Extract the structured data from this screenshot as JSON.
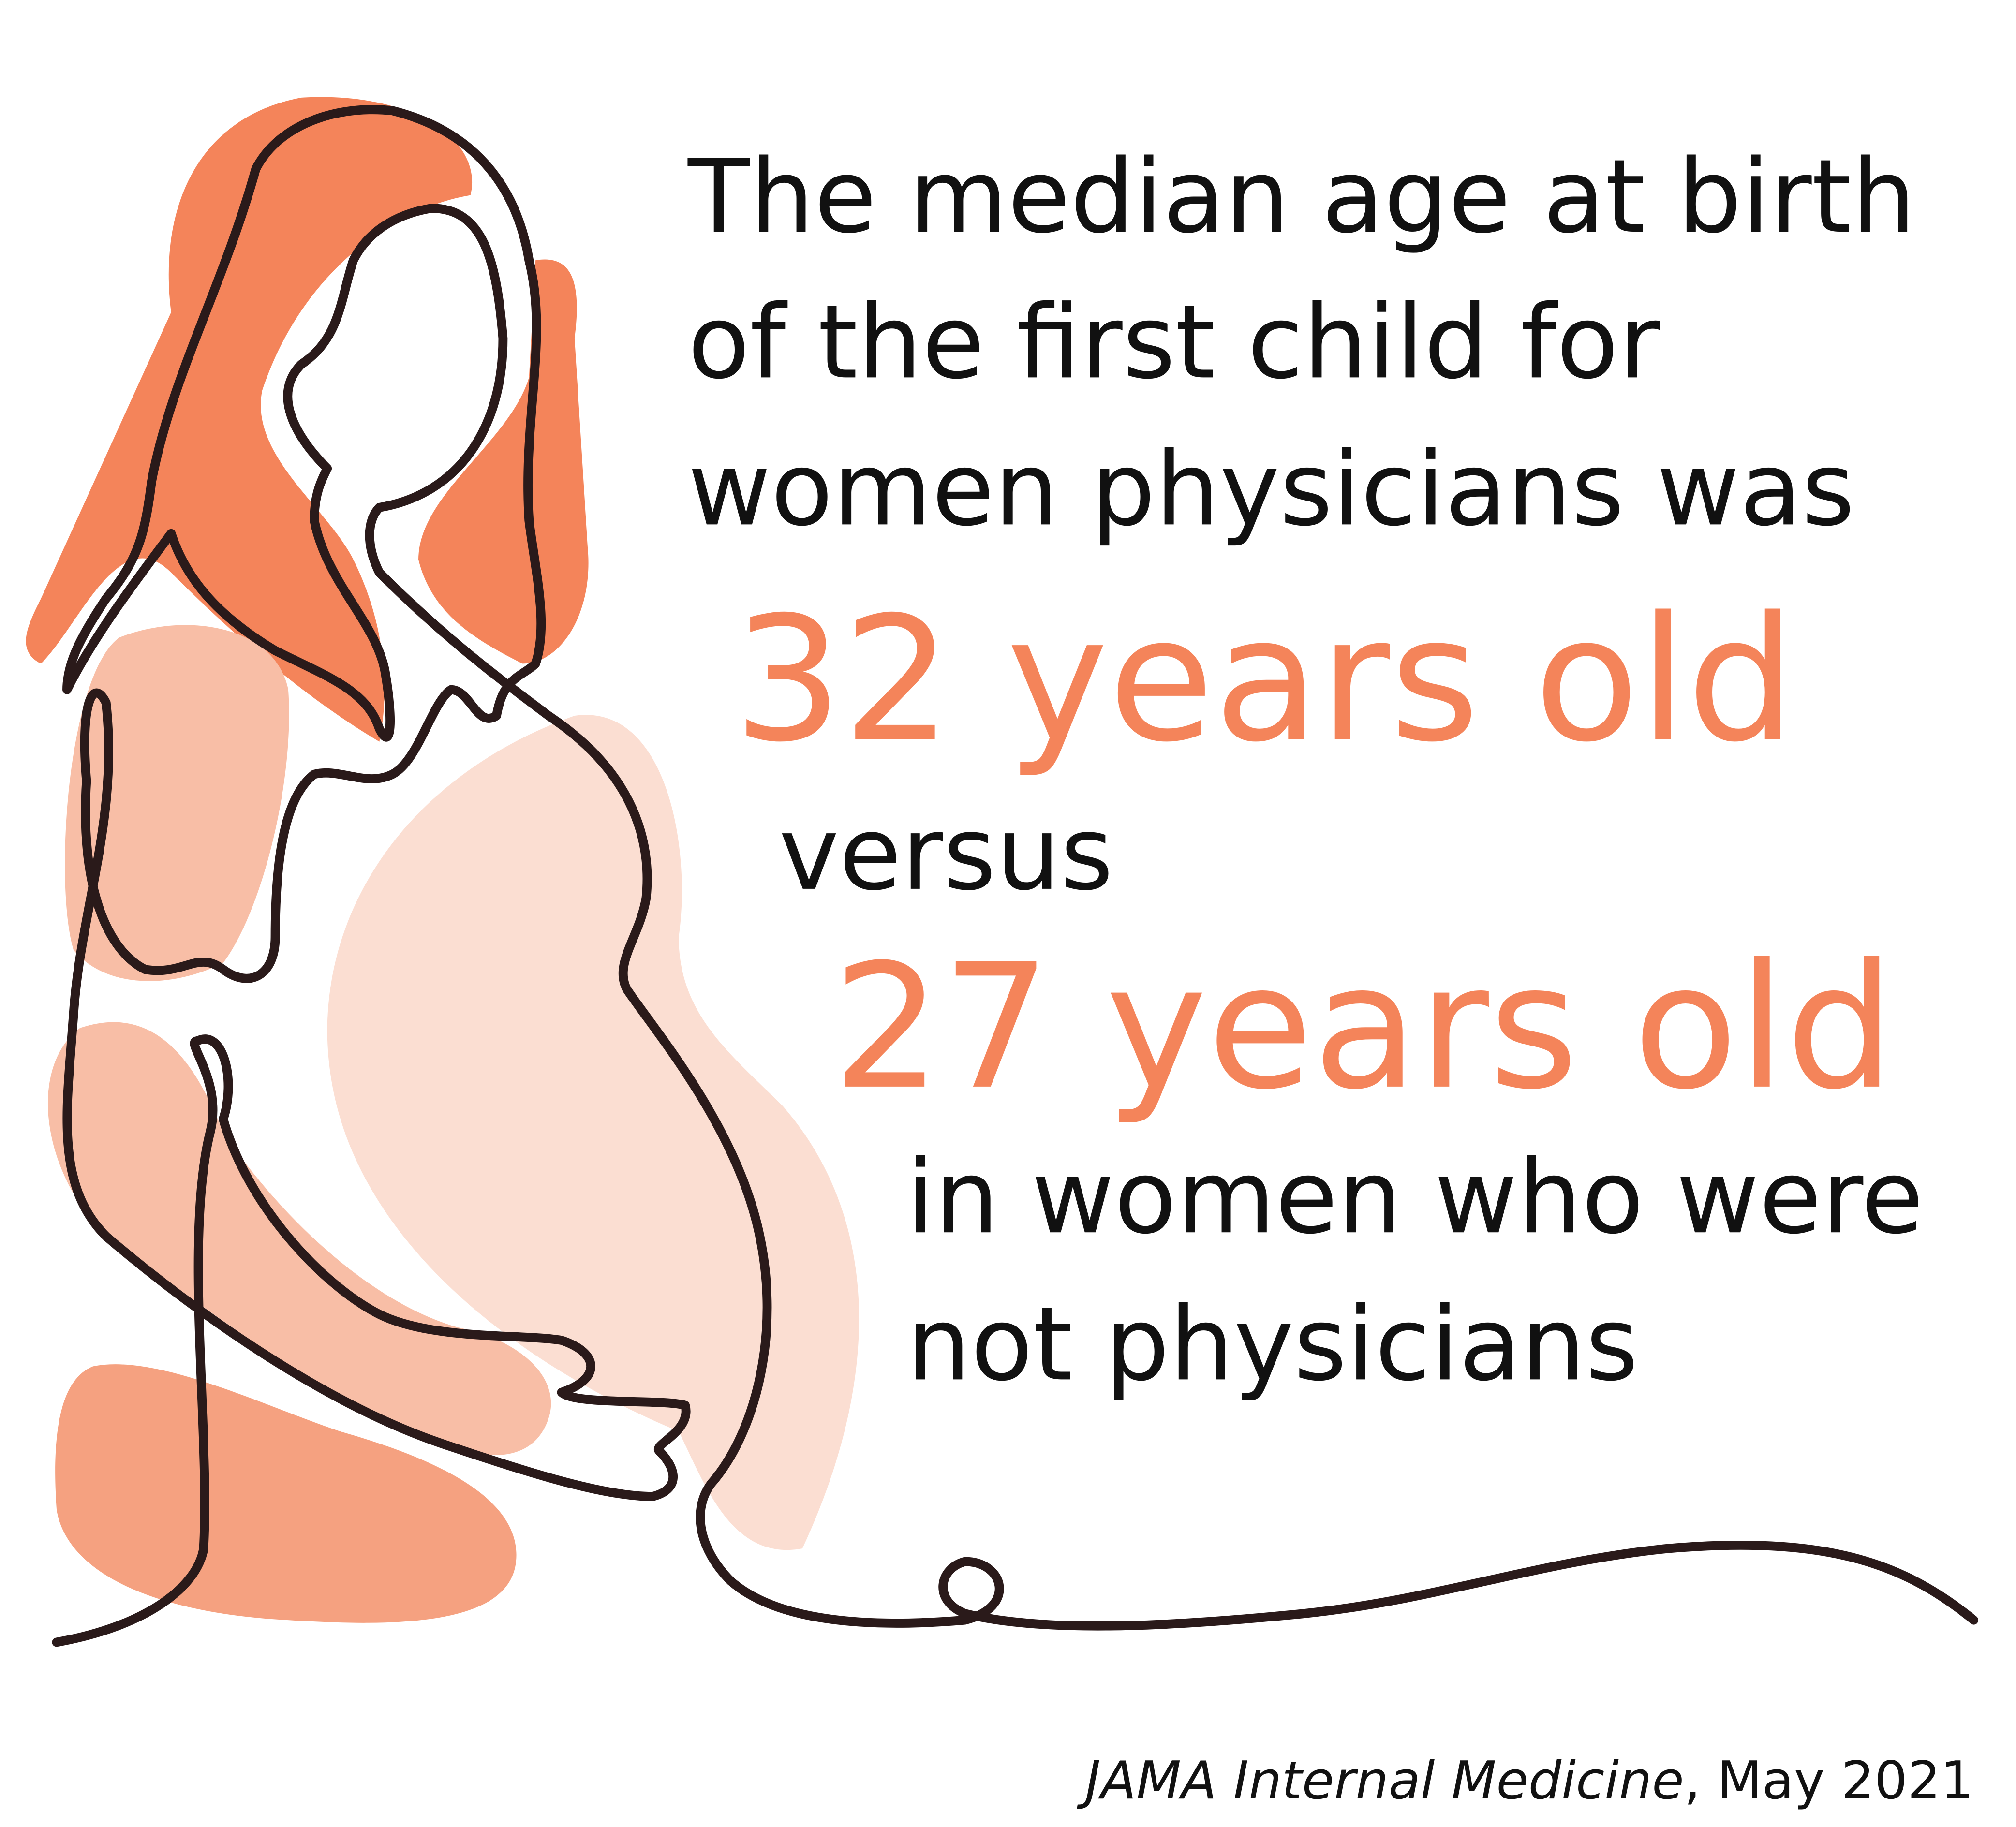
{
  "headline": {
    "lines": [
      "The median age at birth",
      "of the first child for",
      "women physicians was"
    ]
  },
  "stat_physicians": "32 years old",
  "connector": "versus",
  "stat_others": "27 years old",
  "tail": {
    "lines": [
      "in women who were",
      "not physicians"
    ]
  },
  "source": {
    "journal": "JAMA Internal Medicine",
    "date": ", May 2021"
  }
}
